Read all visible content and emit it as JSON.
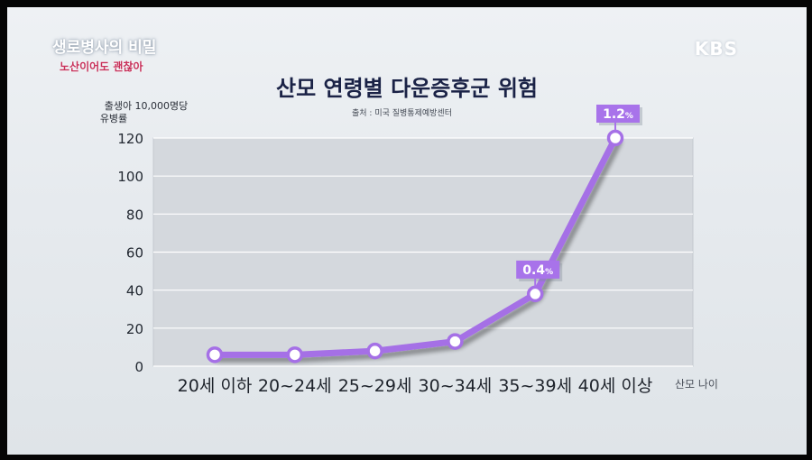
{
  "overlay": {
    "show_logo": "생로병사의 비밀",
    "show_subtitle": "노산이어도 괜찮아",
    "channel": "KBS"
  },
  "chart_data": {
    "type": "line",
    "title": "산모 연령별 다운증후군 위험",
    "source": "출처 : 미국 질병통제예방센터",
    "ylabel_line1": "출생아 10,000명당",
    "ylabel_line2": "유병률",
    "xlabel": "산모 나이",
    "categories": [
      "20세 이하",
      "20~24세",
      "25~29세",
      "30~34세",
      "35~39세",
      "40세 이상"
    ],
    "values": [
      6,
      6,
      8,
      13,
      38,
      120
    ],
    "ylim": [
      0,
      120
    ],
    "yticks": [
      0,
      20,
      40,
      60,
      80,
      100,
      120
    ],
    "grid": true,
    "line_color": "#a570e6",
    "annotations": [
      {
        "index": 4,
        "label": "0.4",
        "unit": "%"
      },
      {
        "index": 5,
        "label": "1.2",
        "unit": "%"
      }
    ]
  }
}
